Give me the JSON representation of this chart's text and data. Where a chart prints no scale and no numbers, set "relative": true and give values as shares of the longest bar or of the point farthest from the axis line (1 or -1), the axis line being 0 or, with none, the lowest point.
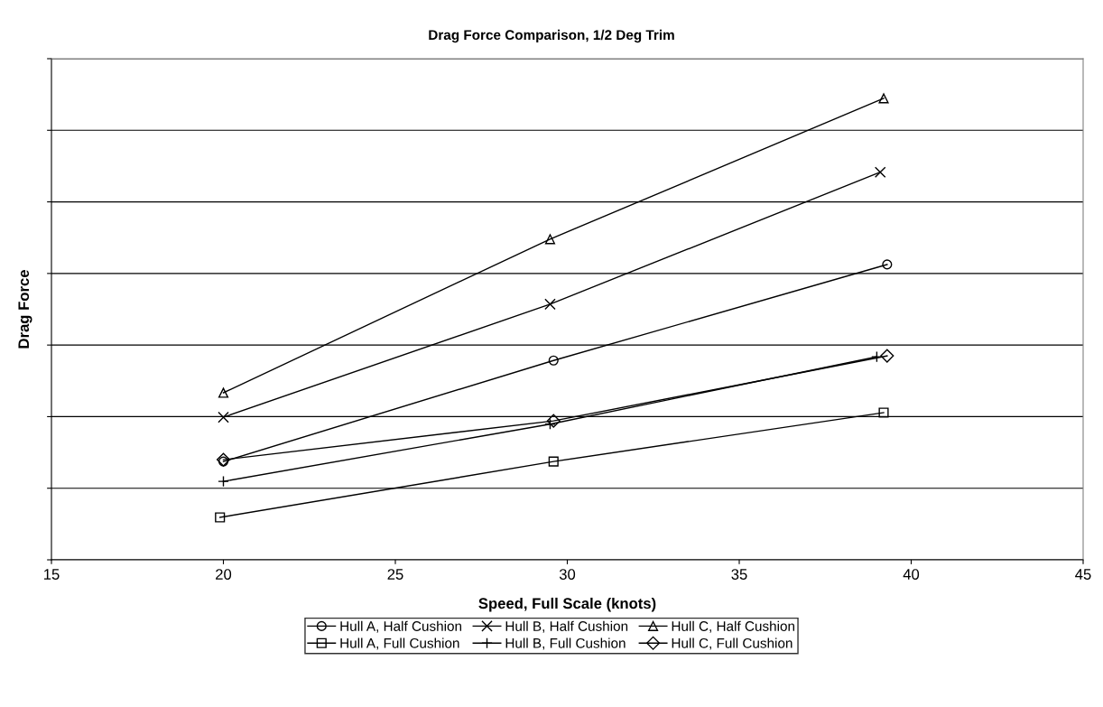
{
  "chart_data": {
    "type": "line",
    "title": "Drag Force Comparison, 1/2 Deg Trim",
    "xlabel": "Speed, Full Scale (knots)",
    "ylabel": "Drag Force",
    "relative": true,
    "xlim": [
      15,
      45
    ],
    "xticks": [
      15,
      20,
      25,
      30,
      35,
      40,
      45
    ],
    "grid": "y",
    "legend": "bottom",
    "line_style": "solid",
    "series": [
      {
        "name": "Hull A, Half Cushion",
        "color": "#000000",
        "marker": "circle",
        "x": [
          20,
          29.6,
          39.3
        ],
        "values": [
          0.213,
          0.432,
          0.64
        ]
      },
      {
        "name": "Hull B, Half Cushion",
        "color": "#000000",
        "marker": "cross",
        "x": [
          20,
          29.5,
          39.1
        ],
        "values": [
          0.309,
          0.554,
          0.84
        ]
      },
      {
        "name": "Hull C, Half Cushion",
        "color": "#000000",
        "marker": "triangle",
        "x": [
          20,
          29.5,
          39.2
        ],
        "values": [
          0.362,
          0.695,
          1.0
        ]
      },
      {
        "name": "Hull A, Full Cushion",
        "color": "#000000",
        "marker": "square",
        "x": [
          19.9,
          29.6,
          39.2
        ],
        "values": [
          0.092,
          0.213,
          0.319
        ]
      },
      {
        "name": "Hull B, Full Cushion",
        "color": "#000000",
        "marker": "plus",
        "x": [
          20,
          29.5,
          39.0
        ],
        "values": [
          0.17,
          0.294,
          0.44
        ]
      },
      {
        "name": "Hull C, Full Cushion",
        "color": "#000000",
        "marker": "diamond",
        "x": [
          20,
          29.6,
          39.3
        ],
        "values": [
          0.217,
          0.301,
          0.442
        ]
      }
    ]
  }
}
